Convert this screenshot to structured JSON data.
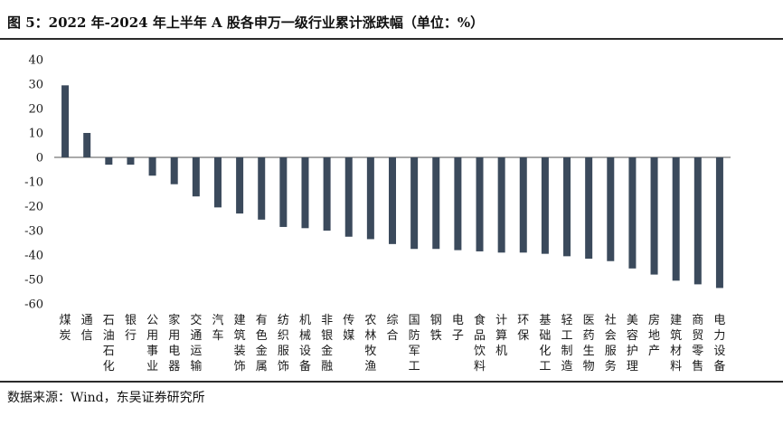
{
  "header": {
    "title": "图 5：2022 年-2024 年上半年 A 股各申万一级行业累计涨跌幅（单位：%）"
  },
  "footer": {
    "source": "数据来源：Wind，东吴证券研究所"
  },
  "colors": {
    "bar": "#3b4a5c",
    "axis": "#555555",
    "rule": "#2b2b2b"
  },
  "chart_data": {
    "type": "bar",
    "categories": [
      "煤炭",
      "通信",
      "石油石化",
      "银行",
      "公用事业",
      "家用电器",
      "交通运输",
      "汽车",
      "建筑装饰",
      "有色金属",
      "纺织服饰",
      "机械设备",
      "非银金融",
      "传媒",
      "农林牧渔",
      "综合",
      "国防军工",
      "钢铁",
      "电子",
      "食品饮料",
      "计算机",
      "环保",
      "基础化工",
      "轻工制造",
      "医药生物",
      "社会服务",
      "美容护理",
      "房地产",
      "建筑材料",
      "商贸零售",
      "电力设备"
    ],
    "values": [
      29.5,
      10,
      -3,
      -3,
      -7.5,
      -11,
      -16,
      -20.5,
      -23,
      -25.5,
      -28.5,
      -29,
      -30,
      -32.5,
      -33.5,
      -35.5,
      -37.5,
      -37.5,
      -38,
      -38.5,
      -39,
      -39,
      -39.5,
      -40.5,
      -41.5,
      -42.5,
      -45.5,
      -48,
      -50.5,
      -52,
      -53.5
    ],
    "ylim": [
      -60,
      40
    ],
    "yticks": [
      40,
      30,
      20,
      10,
      0,
      -10,
      -20,
      -30,
      -40,
      -50,
      -60
    ],
    "grid": false,
    "legend": "none"
  }
}
